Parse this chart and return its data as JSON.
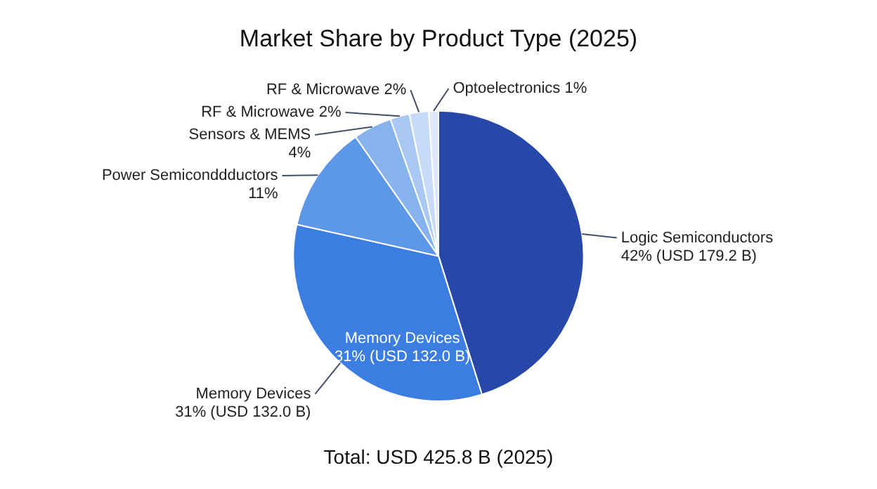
{
  "chart_data": {
    "type": "pie",
    "title": "Market Share by Product Type (2025)",
    "categories": [
      "Logic Semiconductors",
      "Memory Devices",
      "Power Semiconddductors",
      "Sensors & MEMS",
      "RF & Microwave",
      "RF & Microwave",
      "Optoelectronics"
    ],
    "values": [
      42,
      31,
      11,
      4,
      2,
      2,
      1
    ],
    "colors": [
      "#2748a8",
      "#3b7de0",
      "#5d97e8",
      "#86b2ee",
      "#a9c8f4",
      "#c7dbf8",
      "#dde9fb"
    ],
    "value_labels": [
      "42% (USD 179.2 B)",
      "31% (USD 132.0 B)",
      "11%",
      "4%",
      "2%",
      "2%",
      "1%"
    ],
    "annotations": [
      {
        "text": "Memory Devices\n31% (USD 132.0 B)",
        "x": "Memory Devices"
      },
      "Total: USD 425.8 B (2025)"
    ],
    "legend": false
  }
}
